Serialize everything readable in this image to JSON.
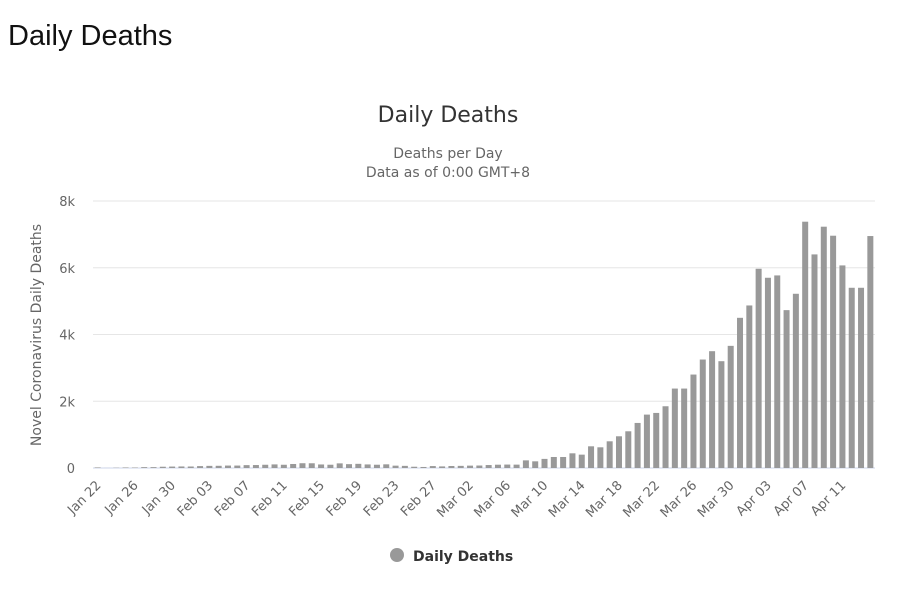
{
  "page_title": "Daily Deaths",
  "chart_data": {
    "type": "bar",
    "title": "Daily Deaths",
    "subtitle": [
      "Deaths per Day",
      "Data as of 0:00 GMT+8"
    ],
    "y_label": "Novel Coronavirus Daily Deaths",
    "categories": [
      "Jan 22",
      null,
      null,
      null,
      "Jan 26",
      null,
      null,
      null,
      "Jan 30",
      null,
      null,
      null,
      "Feb 03",
      null,
      null,
      null,
      "Feb 07",
      null,
      null,
      null,
      "Feb 11",
      null,
      null,
      null,
      "Feb 15",
      null,
      null,
      null,
      "Feb 19",
      null,
      null,
      null,
      "Feb 23",
      null,
      null,
      null,
      "Feb 27",
      null,
      null,
      null,
      "Mar 02",
      null,
      null,
      null,
      "Mar 06",
      null,
      null,
      null,
      "Mar 10",
      null,
      null,
      null,
      "Mar 14",
      null,
      null,
      null,
      "Mar 18",
      null,
      null,
      null,
      "Mar 22",
      null,
      null,
      null,
      "Mar 26",
      null,
      null,
      null,
      "Mar 30",
      null,
      null,
      null,
      "Apr 03",
      null,
      null,
      null,
      "Apr 07",
      null,
      null,
      null,
      "Apr 11",
      null,
      null,
      null
    ],
    "series": [
      {
        "name": "Daily Deaths",
        "color": "#999999",
        "values": [
          17,
          1,
          8,
          16,
          14,
          26,
          26,
          38,
          43,
          46,
          45,
          57,
          64,
          66,
          73,
          73,
          86,
          89,
          97,
          108,
          97,
          120,
          143,
          142,
          106,
          98,
          139,
          115,
          125,
          107,
          98,
          110,
          70,
          64,
          38,
          31,
          58,
          48,
          60,
          64,
          71,
          74,
          89,
          99,
          103,
          101,
          229,
          200,
          273,
          330,
          330,
          440,
          400,
          650,
          620,
          800,
          950,
          1100,
          1350,
          1600,
          1650,
          1850,
          2380,
          2380,
          2800,
          3250,
          3500,
          3200,
          3660,
          4500,
          4870,
          5970,
          5700,
          5770,
          4730,
          5220,
          7380,
          6400,
          7230,
          6960,
          6070,
          5400,
          5400,
          6950
        ]
      }
    ],
    "ylim": [
      0,
      8000
    ],
    "yticks": [
      0,
      {
        "value": 2000,
        "label": "2k"
      },
      {
        "value": 4000,
        "label": "4k"
      },
      {
        "value": 6000,
        "label": "6k"
      },
      {
        "value": 8000,
        "label": "8k"
      }
    ],
    "grid": true,
    "legend": "bottom"
  }
}
